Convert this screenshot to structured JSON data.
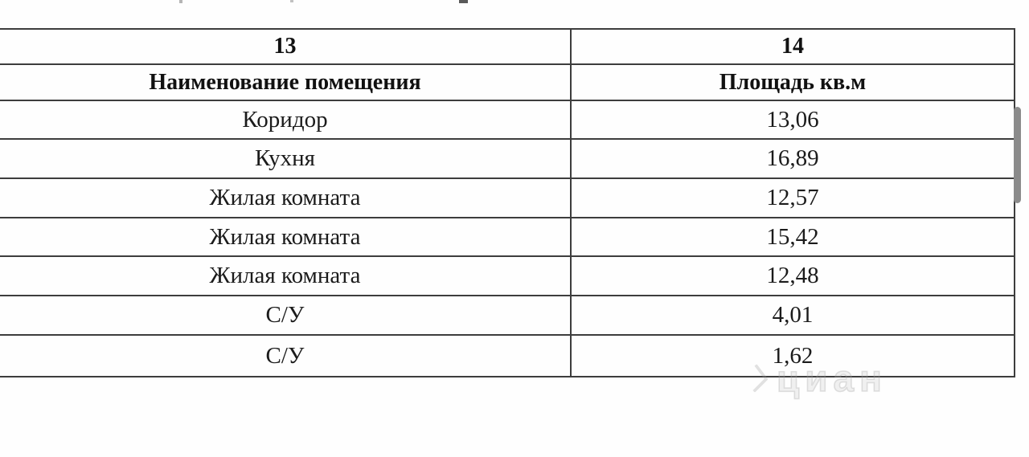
{
  "table": {
    "column_numbers": [
      "13",
      "14"
    ],
    "headers": [
      "Наименование помещения",
      "Площадь кв.м"
    ],
    "rows": [
      {
        "name": "Коридор",
        "area": "13,06"
      },
      {
        "name": "Кухня",
        "area": "16,89"
      },
      {
        "name": "Жилая комната",
        "area": "12,57"
      },
      {
        "name": "Жилая комната",
        "area": "15,42"
      },
      {
        "name": "Жилая комната",
        "area": "12,48"
      },
      {
        "name": "С/У",
        "area": "4,01"
      },
      {
        "name": "С/У",
        "area": "1,62"
      }
    ]
  },
  "watermark": {
    "text": "циан"
  },
  "colors": {
    "table_border": "#3d3d3d",
    "text": "#1b1b1b",
    "scrollbar_thumb": "#8b8b8b",
    "watermark": "#a8a8a8"
  }
}
